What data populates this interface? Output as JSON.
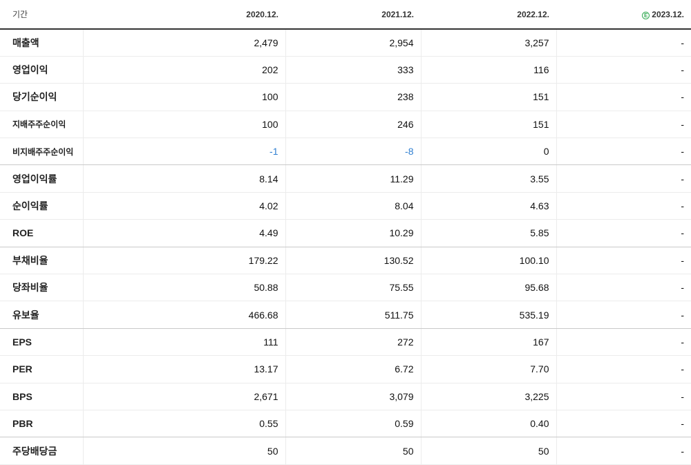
{
  "table": {
    "header": {
      "label": "기간",
      "periods": [
        "2020.12.",
        "2021.12.",
        "2022.12.",
        "2023.12."
      ],
      "estimate_icon": "Ⓔ"
    },
    "rows": [
      {
        "label": "매출액",
        "values": [
          "2,479",
          "2,954",
          "3,257",
          "-"
        ]
      },
      {
        "label": "영업이익",
        "values": [
          "202",
          "333",
          "116",
          "-"
        ]
      },
      {
        "label": "당기순이익",
        "values": [
          "100",
          "238",
          "151",
          "-"
        ]
      },
      {
        "label": "지배주주순이익",
        "values": [
          "100",
          "246",
          "151",
          "-"
        ]
      },
      {
        "label": "비지배주주순이익",
        "values": [
          "-1",
          "-8",
          "0",
          "-"
        ]
      },
      {
        "label": "영업이익률",
        "values": [
          "8.14",
          "11.29",
          "3.55",
          "-"
        ]
      },
      {
        "label": "순이익률",
        "values": [
          "4.02",
          "8.04",
          "4.63",
          "-"
        ]
      },
      {
        "label": "ROE",
        "values": [
          "4.49",
          "10.29",
          "5.85",
          "-"
        ]
      },
      {
        "label": "부채비율",
        "values": [
          "179.22",
          "130.52",
          "100.10",
          "-"
        ]
      },
      {
        "label": "당좌비율",
        "values": [
          "50.88",
          "75.55",
          "95.68",
          "-"
        ]
      },
      {
        "label": "유보율",
        "values": [
          "466.68",
          "511.75",
          "535.19",
          "-"
        ]
      },
      {
        "label": "EPS",
        "values": [
          "111",
          "272",
          "167",
          "-"
        ]
      },
      {
        "label": "PER",
        "values": [
          "13.17",
          "6.72",
          "7.70",
          "-"
        ]
      },
      {
        "label": "BPS",
        "values": [
          "2,671",
          "3,079",
          "3,225",
          "-"
        ]
      },
      {
        "label": "PBR",
        "values": [
          "0.55",
          "0.59",
          "0.40",
          "-"
        ]
      },
      {
        "label": "주당배당금",
        "values": [
          "50",
          "50",
          "50",
          "-"
        ]
      }
    ],
    "colors": {
      "negative": "#2f7fd1",
      "estimate": "#2fa84f"
    }
  }
}
